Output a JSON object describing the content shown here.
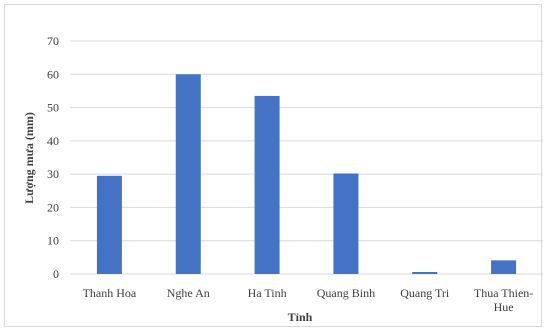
{
  "chart_data": {
    "type": "bar",
    "title": "",
    "xlabel": "Tỉnh",
    "ylabel": "Lượng mưa (mm)",
    "categories": [
      [
        "Thanh Hoa"
      ],
      [
        "Nghe An"
      ],
      [
        "Ha Tinh"
      ],
      [
        "Quang Binh"
      ],
      [
        "Quang Tri"
      ],
      [
        "Thua Thien-",
        "Hue"
      ]
    ],
    "values": [
      29.5,
      60,
      53.5,
      30.2,
      0.6,
      4.1
    ],
    "ylim": [
      0,
      70
    ],
    "yticks": [
      0,
      10,
      20,
      30,
      40,
      50,
      60,
      70
    ],
    "grid": true,
    "legend": "none",
    "colors": {
      "bar": "#4472c4",
      "gridline": "#d9d9d9",
      "text": "#404040"
    }
  }
}
